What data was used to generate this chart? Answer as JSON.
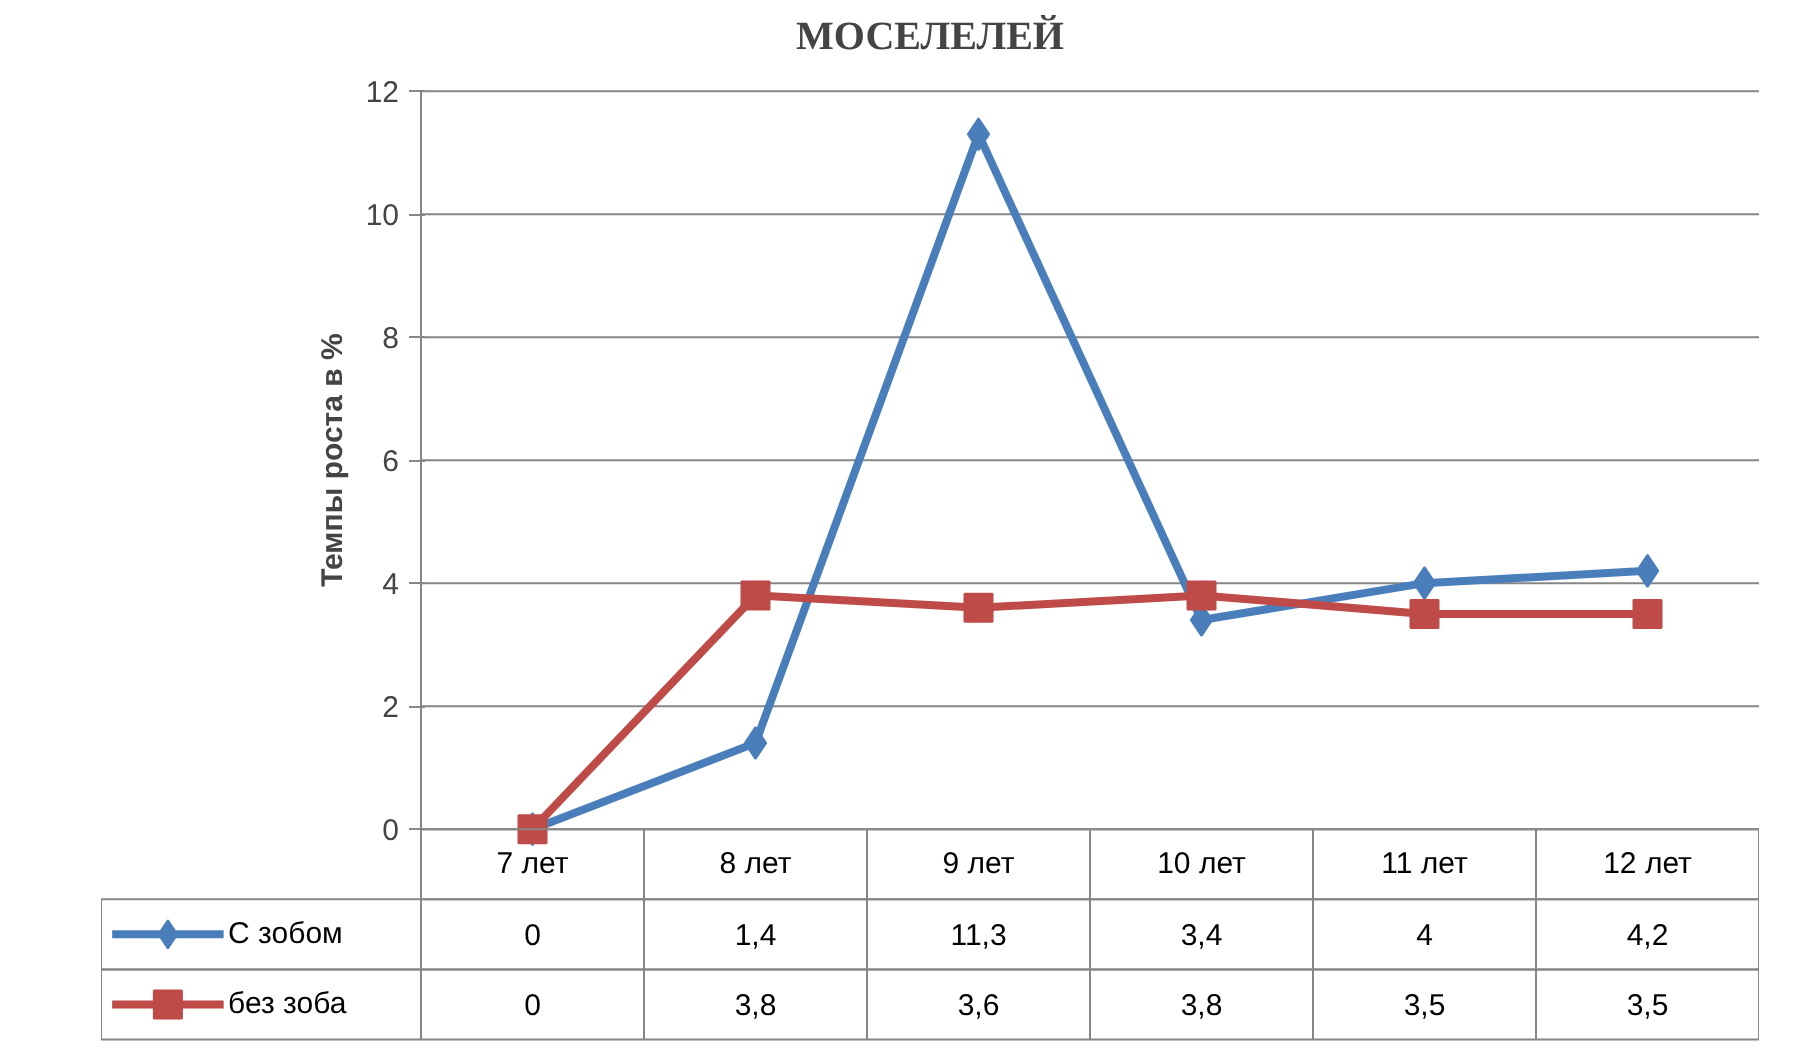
{
  "chart_data": {
    "type": "line",
    "title": "МОСЕЛЕЛЕЙ",
    "ylabel": "Темпы роста в %",
    "categories": [
      "7 лет",
      "8 лет",
      "9 лет",
      "10 лет",
      "11 лет",
      "12 лет"
    ],
    "series": [
      {
        "name": "С зобом",
        "color": "#4a7ebb",
        "marker": "diamond",
        "values": [
          0,
          1.4,
          11.3,
          3.4,
          4,
          4.2
        ],
        "value_labels": [
          "0",
          "1,4",
          "11,3",
          "3,4",
          "4",
          "4,2"
        ]
      },
      {
        "name": "без зоба",
        "color": "#be4b48",
        "marker": "square",
        "values": [
          0,
          3.8,
          3.6,
          3.8,
          3.5,
          3.5
        ],
        "value_labels": [
          "0",
          "3,8",
          "3,6",
          "3,8",
          "3,5",
          "3,5"
        ]
      }
    ],
    "ylim": [
      0,
      12
    ],
    "yticks": [
      0,
      2,
      4,
      6,
      8,
      10,
      12
    ],
    "grid": "y",
    "legend": "bottom left",
    "line_style": "solid"
  }
}
